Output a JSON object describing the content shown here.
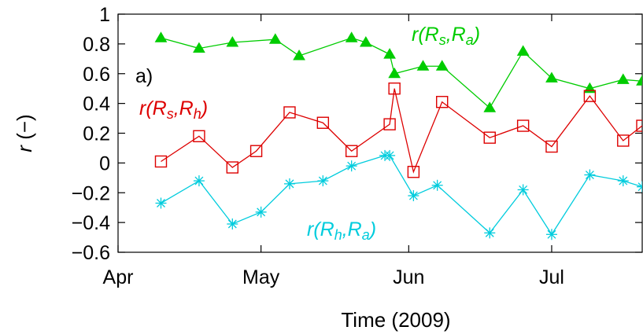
{
  "chart_data": {
    "type": "line",
    "panel_label": "a)",
    "xlabel": "Time (2009)",
    "ylabel": "r (−)",
    "ylim": [
      -0.6,
      1.0
    ],
    "yticks": [
      -0.6,
      -0.4,
      -0.2,
      0,
      0.2,
      0.4,
      0.6,
      0.8,
      1
    ],
    "ytick_labels": [
      "−0.6",
      "−0.4",
      "−0.2",
      "0",
      "0.2",
      "0.4",
      "0.6",
      "0.8",
      "1"
    ],
    "xlim": [
      "2009-04-01",
      "2009-07-20"
    ],
    "xticks": [
      {
        "date": "2009-04-01",
        "label": "Apr"
      },
      {
        "date": "2009-05-01",
        "label": "May"
      },
      {
        "date": "2009-06-01",
        "label": "Jun"
      },
      {
        "date": "2009-07-01",
        "label": "Jul"
      }
    ],
    "grid": false,
    "legend": "none",
    "series": [
      {
        "name": "r(Rs,Ra)",
        "label": {
          "prefix": "r(R",
          "sub1": "s",
          "mid": ",R",
          "sub2": "a",
          "suffix": ")"
        },
        "color": "#00cc00",
        "marker": "triangle",
        "x": [
          "2009-04-10",
          "2009-04-18",
          "2009-04-25",
          "2009-05-04",
          "2009-05-09",
          "2009-05-20",
          "2009-05-23",
          "2009-05-28",
          "2009-05-29",
          "2009-06-04",
          "2009-06-08",
          "2009-06-18",
          "2009-06-25",
          "2009-07-01",
          "2009-07-09",
          "2009-07-16",
          "2009-07-20"
        ],
        "y": [
          0.84,
          0.77,
          0.81,
          0.83,
          0.72,
          0.84,
          0.81,
          0.73,
          0.6,
          0.65,
          0.65,
          0.37,
          0.75,
          0.57,
          0.5,
          0.56,
          0.55
        ]
      },
      {
        "name": "r(Rs,Rh)",
        "label": {
          "prefix": "r(R",
          "sub1": "s",
          "mid": ",R",
          "sub2": "h",
          "suffix": ")"
        },
        "color": "#dd0000",
        "marker": "square",
        "x": [
          "2009-04-10",
          "2009-04-18",
          "2009-04-25",
          "2009-04-30",
          "2009-05-07",
          "2009-05-14",
          "2009-05-20",
          "2009-05-28",
          "2009-05-29",
          "2009-06-02",
          "2009-06-08",
          "2009-06-18",
          "2009-06-25",
          "2009-07-01",
          "2009-07-09",
          "2009-07-16",
          "2009-07-20"
        ],
        "y": [
          0.01,
          0.18,
          -0.03,
          0.08,
          0.34,
          0.27,
          0.08,
          0.26,
          0.5,
          -0.06,
          0.41,
          0.17,
          0.25,
          0.11,
          0.45,
          0.15,
          0.25
        ]
      },
      {
        "name": "r(Rh,Ra)",
        "label": {
          "prefix": "r(R",
          "sub1": "h",
          "mid": ",R",
          "sub2": "a",
          "suffix": ")"
        },
        "color": "#00ccdd",
        "marker": "asterisk",
        "x": [
          "2009-04-10",
          "2009-04-18",
          "2009-04-25",
          "2009-05-01",
          "2009-05-07",
          "2009-05-14",
          "2009-05-20",
          "2009-05-27",
          "2009-05-28",
          "2009-06-02",
          "2009-06-07",
          "2009-06-18",
          "2009-06-25",
          "2009-07-01",
          "2009-07-09",
          "2009-07-16",
          "2009-07-20"
        ],
        "y": [
          -0.27,
          -0.12,
          -0.41,
          -0.33,
          -0.14,
          -0.12,
          -0.02,
          0.05,
          0.05,
          -0.22,
          -0.15,
          -0.47,
          -0.18,
          -0.48,
          -0.08,
          -0.12,
          -0.16
        ]
      }
    ]
  }
}
